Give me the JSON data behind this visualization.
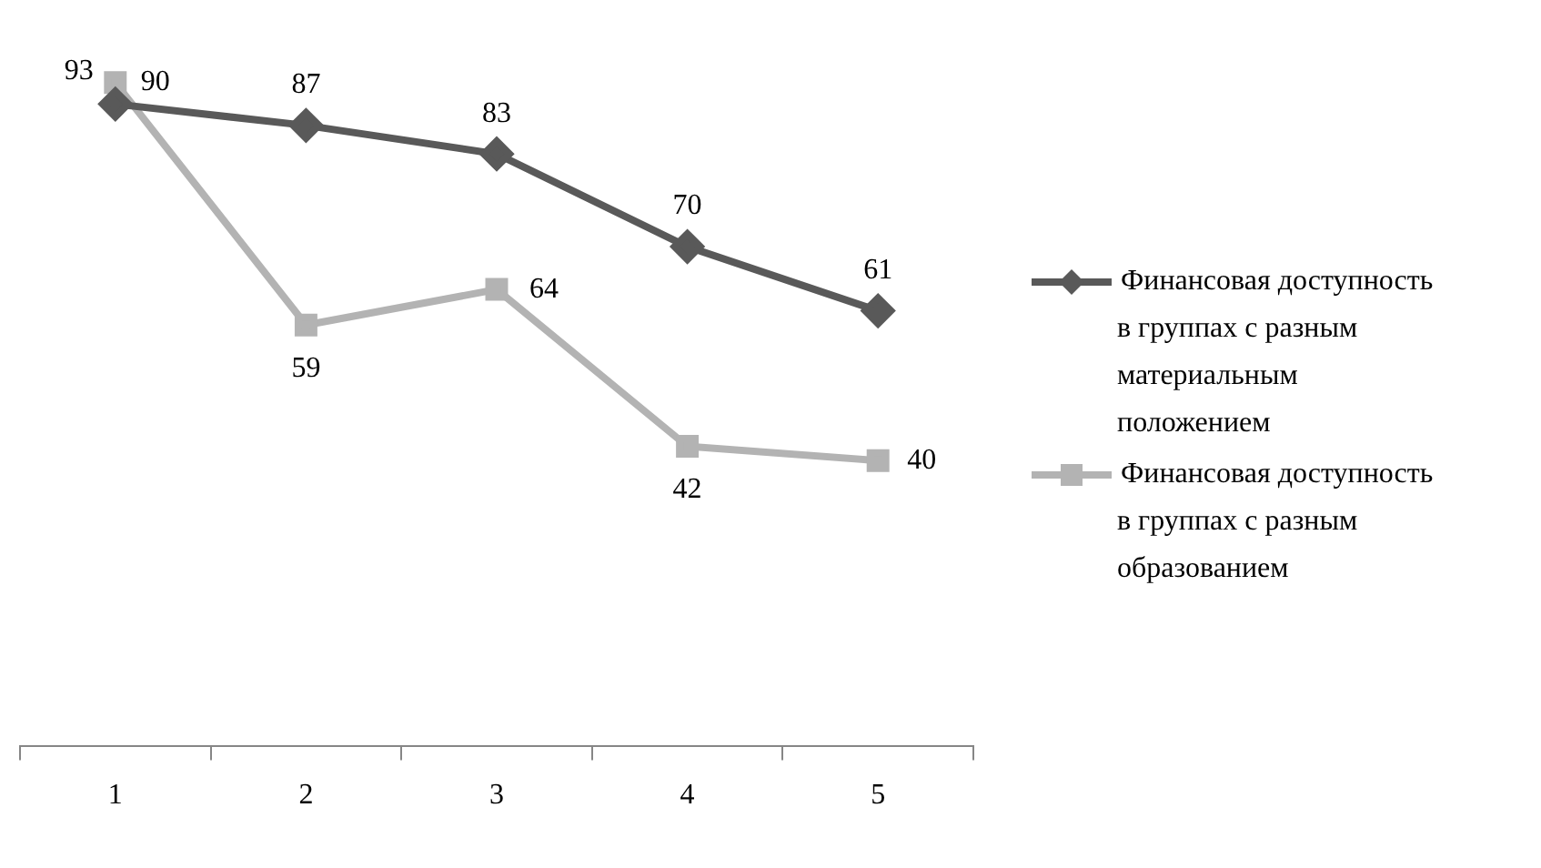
{
  "chart_data": {
    "type": "line",
    "categories": [
      "1",
      "2",
      "3",
      "4",
      "5"
    ],
    "series": [
      {
        "name": "Финансовая доступность в группах с разным материальным положением",
        "color": "#595959",
        "marker": "diamond",
        "values": [
          90,
          87,
          83,
          70,
          61
        ]
      },
      {
        "name": "Финансовая доступность в группах с разным образованием",
        "color": "#b3b3b3",
        "marker": "square",
        "values": [
          93,
          59,
          64,
          42,
          40
        ]
      }
    ],
    "tick_labels": "x",
    "data_labels": true,
    "legend": "right",
    "grid": false,
    "line_style": "solid"
  }
}
